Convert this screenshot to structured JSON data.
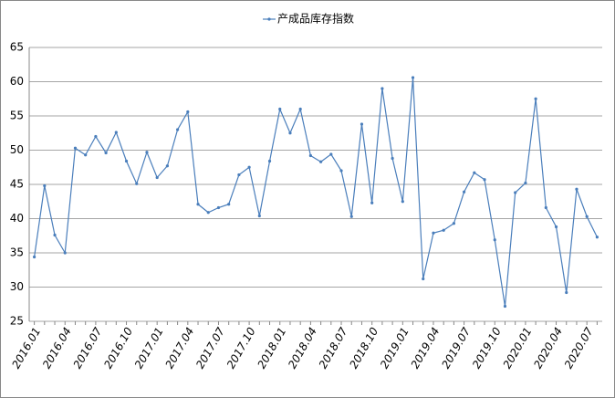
{
  "chart_data": {
    "type": "line",
    "categories": [
      "2016.01",
      null,
      null,
      "2016.04",
      null,
      null,
      "2016.07",
      null,
      null,
      "2016.10",
      null,
      null,
      "2017.01",
      null,
      null,
      "2017.04",
      null,
      null,
      "2017.07",
      null,
      null,
      "2017.10",
      null,
      null,
      "2018.01",
      null,
      null,
      "2018.04",
      null,
      null,
      "2018.07",
      null,
      null,
      "2018.10",
      null,
      null,
      "2019.01",
      null,
      null,
      "2019.04",
      null,
      null,
      "2019.07",
      null,
      null,
      "2019.10",
      null,
      null,
      "2020.01",
      null,
      null,
      "2020.04",
      null,
      null,
      "2020.07",
      null
    ],
    "series": [
      {
        "name": "产成品库存指数",
        "color": "#4a7ebb",
        "values": [
          34.4,
          44.8,
          37.6,
          35.0,
          50.3,
          49.3,
          52.0,
          49.6,
          52.6,
          48.4,
          45.1,
          49.7,
          46.0,
          47.7,
          53.0,
          55.6,
          42.1,
          40.9,
          41.6,
          42.1,
          46.4,
          47.5,
          40.4,
          48.4,
          56.0,
          52.5,
          56.0,
          49.2,
          48.3,
          49.4,
          47.0,
          40.3,
          53.8,
          42.3,
          59.0,
          48.8,
          42.5,
          60.6,
          31.2,
          37.9,
          38.3,
          39.3,
          43.9,
          46.7,
          45.7,
          36.9,
          27.2,
          43.8,
          45.2,
          57.5,
          41.6,
          38.8,
          29.2,
          44.3,
          40.3,
          37.3
        ]
      }
    ],
    "ylim": [
      25,
      65
    ],
    "yticks": [
      25,
      30,
      35,
      40,
      45,
      50,
      55,
      60,
      65
    ],
    "grid": true,
    "legend": "top"
  }
}
